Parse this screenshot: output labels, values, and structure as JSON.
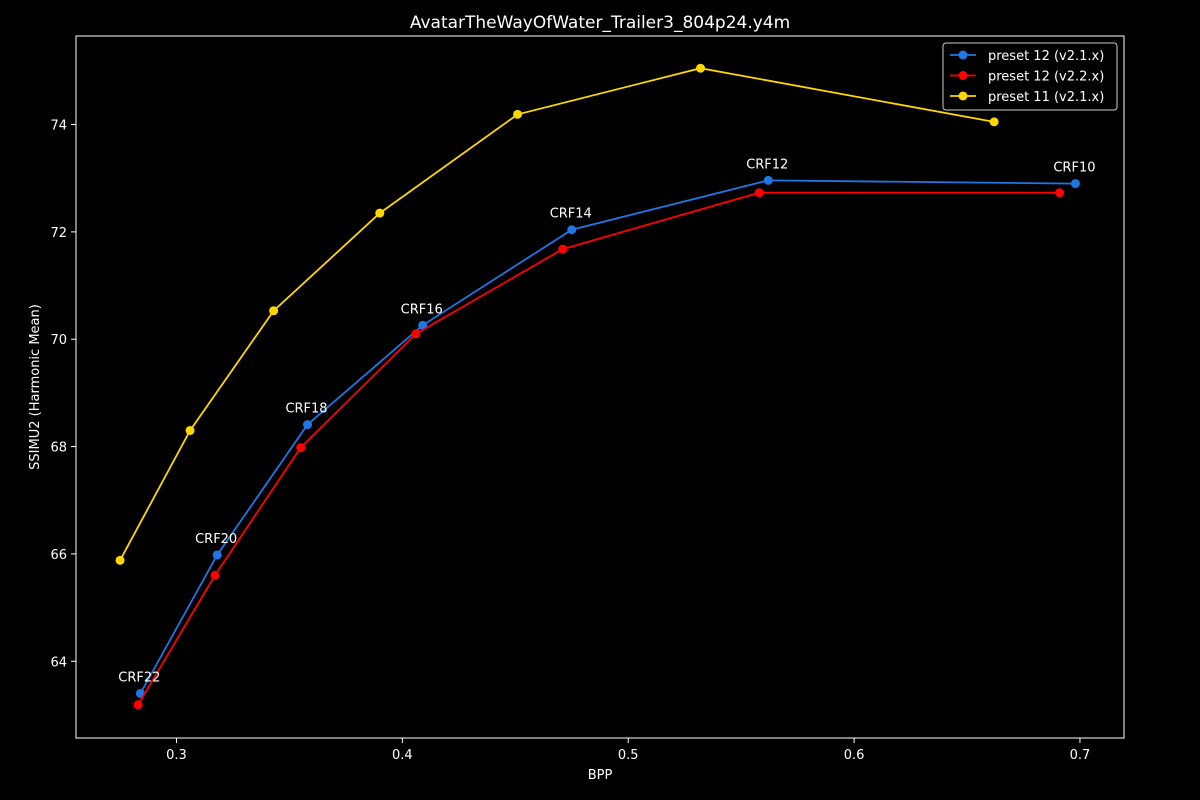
{
  "chart_data": {
    "type": "line",
    "title": "AvatarTheWayOfWater_Trailer3_804p24.y4m",
    "xlabel": "BPP",
    "ylabel": "SSIMU2 (Harmonic Mean)",
    "xlim": [
      0.2555,
      0.7195
    ],
    "ylim": [
      62.57,
      75.65
    ],
    "xticks": [
      0.3,
      0.4,
      0.5,
      0.6,
      0.7
    ],
    "xtick_labels": [
      "0.3",
      "0.4",
      "0.5",
      "0.6",
      "0.7"
    ],
    "yticks": [
      64,
      66,
      68,
      70,
      72,
      74
    ],
    "ytick_labels": [
      "64",
      "66",
      "68",
      "70",
      "72",
      "74"
    ],
    "grid": false,
    "legend_position": "top-right",
    "series": [
      {
        "name": "preset 12 (v2.1.x)",
        "color": "#1f77e6",
        "points": [
          {
            "x": 0.284,
            "y": 63.4
          },
          {
            "x": 0.318,
            "y": 65.98
          },
          {
            "x": 0.358,
            "y": 68.41
          },
          {
            "x": 0.409,
            "y": 70.26
          },
          {
            "x": 0.475,
            "y": 72.04
          },
          {
            "x": 0.562,
            "y": 72.96
          },
          {
            "x": 0.698,
            "y": 72.9
          }
        ]
      },
      {
        "name": "preset 12 (v2.2.x)",
        "color": "#ff0000",
        "points": [
          {
            "x": 0.283,
            "y": 63.19
          },
          {
            "x": 0.317,
            "y": 65.6
          },
          {
            "x": 0.355,
            "y": 67.98
          },
          {
            "x": 0.406,
            "y": 70.1
          },
          {
            "x": 0.471,
            "y": 71.68
          },
          {
            "x": 0.558,
            "y": 72.73
          },
          {
            "x": 0.691,
            "y": 72.73
          }
        ]
      },
      {
        "name": "preset 11 (v2.1.x)",
        "color": "#ffd700",
        "points": [
          {
            "x": 0.275,
            "y": 65.88
          },
          {
            "x": 0.306,
            "y": 68.3
          },
          {
            "x": 0.343,
            "y": 70.53
          },
          {
            "x": 0.39,
            "y": 72.35
          },
          {
            "x": 0.451,
            "y": 74.19
          },
          {
            "x": 0.532,
            "y": 75.05
          },
          {
            "x": 0.662,
            "y": 74.05
          }
        ]
      }
    ],
    "annotations": [
      {
        "text": "CRF22",
        "x": 0.284,
        "y": 63.4
      },
      {
        "text": "CRF20",
        "x": 0.318,
        "y": 65.98
      },
      {
        "text": "CRF18",
        "x": 0.358,
        "y": 68.41
      },
      {
        "text": "CRF16",
        "x": 0.409,
        "y": 70.26
      },
      {
        "text": "CRF14",
        "x": 0.475,
        "y": 72.04
      },
      {
        "text": "CRF12",
        "x": 0.562,
        "y": 72.96
      },
      {
        "text": "CRF10",
        "x": 0.698,
        "y": 72.9
      }
    ]
  }
}
